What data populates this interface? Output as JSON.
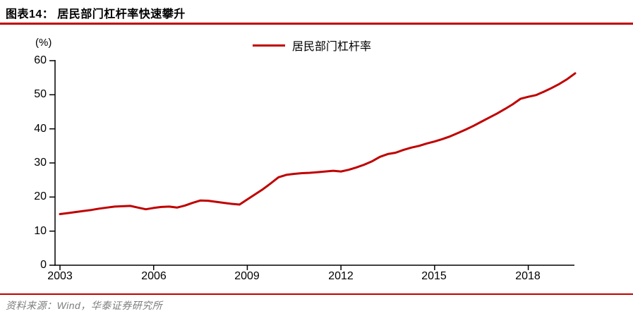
{
  "header": {
    "title": "图表14：  居民部门杠杆率快速攀升"
  },
  "footer": {
    "source": "资料来源：Wind，华泰证券研究所"
  },
  "colors": {
    "accent_red": "#c00000",
    "axis_black": "#000000",
    "source_gray": "#7d7d7d"
  },
  "chart_data": {
    "type": "line",
    "title": "居民部门杠杆率快速攀升",
    "unit_label": "(%)",
    "legend_position": "top-center",
    "grid": false,
    "ylim": [
      0,
      60
    ],
    "y_ticks": [
      "0",
      "10",
      "20",
      "30",
      "40",
      "50",
      "60"
    ],
    "x_ticks": [
      "2003",
      "2006",
      "2009",
      "2012",
      "2015",
      "2018"
    ],
    "x_tick_quarter_indices": [
      0,
      12,
      24,
      36,
      48,
      60
    ],
    "x_start_year": 2003,
    "x_step_years": 0.25,
    "series": [
      {
        "name": "居民部门杠杆率",
        "color": "#c00000",
        "values": [
          15.0,
          15.3,
          15.6,
          15.9,
          16.2,
          16.6,
          16.9,
          17.2,
          17.3,
          17.4,
          16.9,
          16.4,
          16.8,
          17.1,
          17.2,
          16.9,
          17.5,
          18.3,
          19.0,
          18.9,
          18.6,
          18.3,
          18.0,
          17.8,
          19.3,
          20.8,
          22.3,
          24.0,
          25.8,
          26.5,
          26.8,
          27.0,
          27.1,
          27.3,
          27.5,
          27.7,
          27.5,
          28.0,
          28.7,
          29.5,
          30.5,
          31.8,
          32.6,
          33.0,
          33.8,
          34.5,
          35.0,
          35.7,
          36.3,
          37.0,
          37.8,
          38.8,
          39.8,
          40.9,
          42.1,
          43.3,
          44.5,
          45.8,
          47.2,
          48.8,
          49.4,
          49.9,
          50.9,
          52.0,
          53.2,
          54.6,
          56.3
        ]
      }
    ]
  }
}
